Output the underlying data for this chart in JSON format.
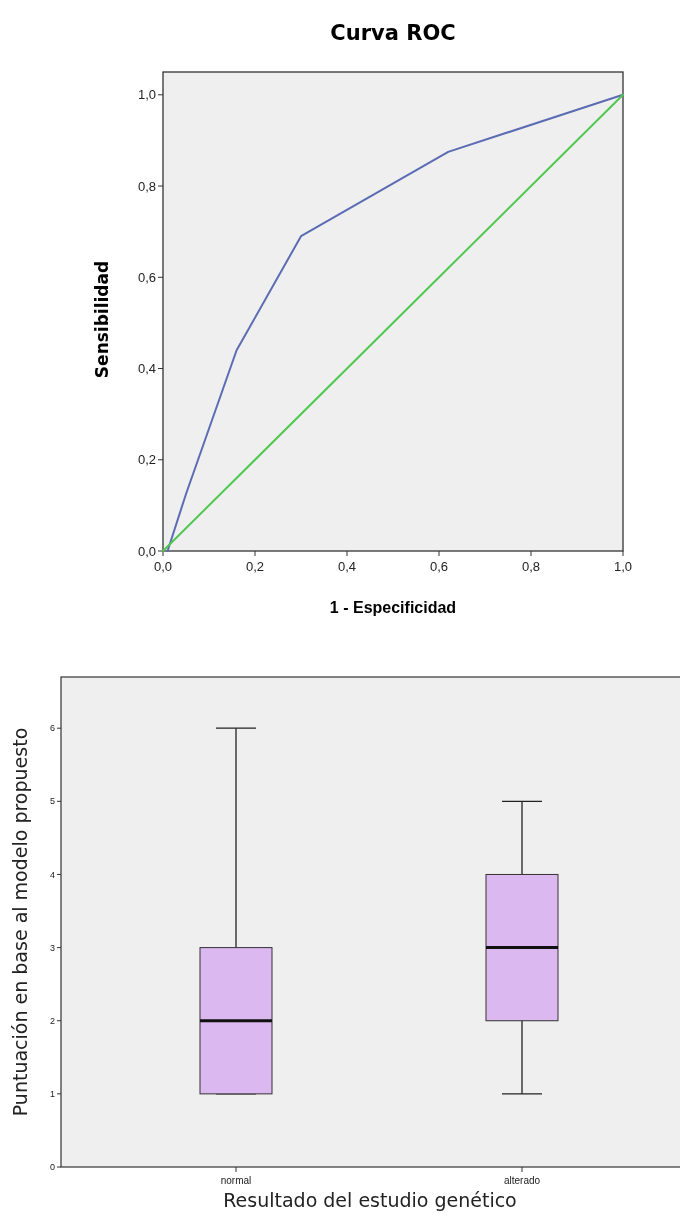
{
  "chart_data": [
    {
      "type": "line",
      "title": "Curva ROC",
      "xlabel": "1 - Especificidad",
      "ylabel": "Sensibilidad",
      "xlim": [
        0,
        1
      ],
      "ylim": [
        0,
        1.05
      ],
      "xticks": [
        {
          "value": 0,
          "label": "0,0"
        },
        {
          "value": 0.2,
          "label": "0,2"
        },
        {
          "value": 0.4,
          "label": "0,4"
        },
        {
          "value": 0.6,
          "label": "0,6"
        },
        {
          "value": 0.8,
          "label": "0,8"
        },
        {
          "value": 1,
          "label": "1,0"
        }
      ],
      "yticks": [
        {
          "value": 0,
          "label": "0,0"
        },
        {
          "value": 0.2,
          "label": "0,2"
        },
        {
          "value": 0.4,
          "label": "0,4"
        },
        {
          "value": 0.6,
          "label": "0,6"
        },
        {
          "value": 0.8,
          "label": "0,8"
        },
        {
          "value": 1,
          "label": "1,0"
        }
      ],
      "series": [
        {
          "color": "#5b6cb4",
          "x": [
            0.01,
            0.05,
            0.16,
            0.3,
            0.62,
            1
          ],
          "values": [
            0,
            0.125,
            0.44,
            0.69,
            0.875,
            1
          ]
        },
        {
          "color": "#4fc84f",
          "x": [
            0,
            1
          ],
          "values": [
            0,
            1
          ]
        }
      ],
      "grid": false
    },
    {
      "type": "box",
      "xlabel": "Resultado del estudio genético",
      "ylabel": "Puntuación en base al modelo propuesto",
      "categories": [
        "normal",
        "alterado"
      ],
      "ylim": [
        0,
        6.7
      ],
      "yticks": [
        0,
        1,
        2,
        3,
        4,
        5,
        6
      ],
      "color": "#dcb8f0",
      "boxes": [
        {
          "low": 1,
          "q1": 1,
          "median": 2,
          "q3": 3,
          "high": 6
        },
        {
          "low": 1,
          "q1": 2,
          "median": 3,
          "q3": 4,
          "high": 5
        }
      ],
      "grid": false
    }
  ]
}
